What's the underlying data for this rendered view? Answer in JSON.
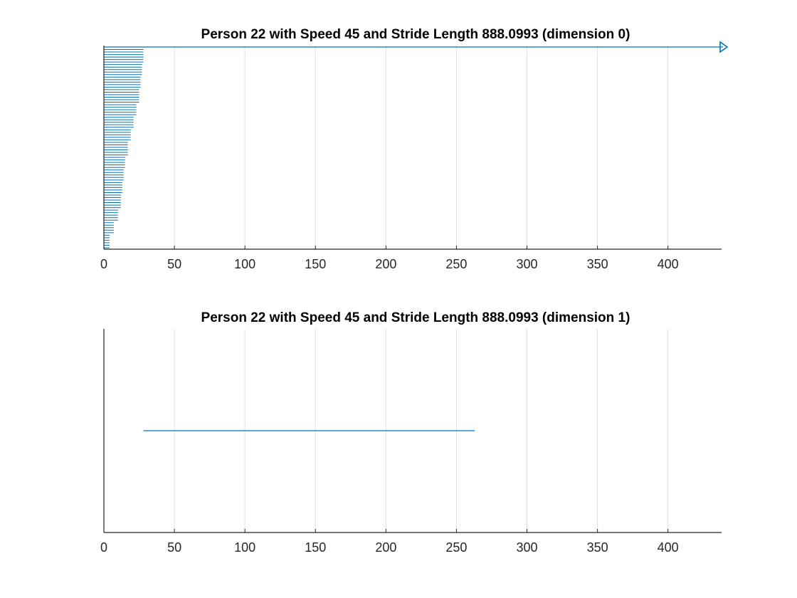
{
  "colors": {
    "series": "#0072bd",
    "grid": "#e1e1e1",
    "axis": "#262626",
    "background": "#ffffff"
  },
  "chart_data": [
    {
      "type": "line",
      "title": "Person 22 with Speed 45 and Stride Length 888.0993 (dimension 0)",
      "xlabel": "",
      "ylabel": "",
      "xlim": [
        0,
        438
      ],
      "xticks": [
        0,
        50,
        100,
        150,
        200,
        250,
        300,
        350,
        400
      ],
      "grid": "x-only",
      "legend": "none",
      "y_axis_labels": "none",
      "barcode_levels_count": 80,
      "barcode_lines": [
        {
          "start": 0,
          "end": 4
        },
        {
          "start": 0,
          "end": 7
        },
        {
          "start": 0,
          "end": 10
        },
        {
          "start": 0,
          "end": 12
        },
        {
          "start": 0,
          "end": 13
        },
        {
          "start": 0,
          "end": 14
        },
        {
          "start": 0,
          "end": 15
        },
        {
          "start": 0,
          "end": 17
        },
        {
          "start": 0,
          "end": 19
        },
        {
          "start": 0,
          "end": 21
        },
        {
          "start": 0,
          "end": 23
        },
        {
          "start": 0,
          "end": 25
        },
        {
          "start": 0,
          "end": 26
        },
        {
          "start": 0,
          "end": 27
        },
        {
          "start": 0,
          "end": 28
        }
      ],
      "arrow_line": {
        "start": 0,
        "end": 438,
        "infinite": true
      }
    },
    {
      "type": "line",
      "title": "Person 22 with Speed 45 and Stride Length 888.0993 (dimension 1)",
      "xlabel": "",
      "ylabel": "",
      "xlim": [
        0,
        438
      ],
      "xticks": [
        0,
        50,
        100,
        150,
        200,
        250,
        300,
        350,
        400
      ],
      "grid": "x-only",
      "legend": "none",
      "y_axis_labels": "none",
      "segments": [
        {
          "start": 28,
          "end": 263
        }
      ]
    }
  ]
}
